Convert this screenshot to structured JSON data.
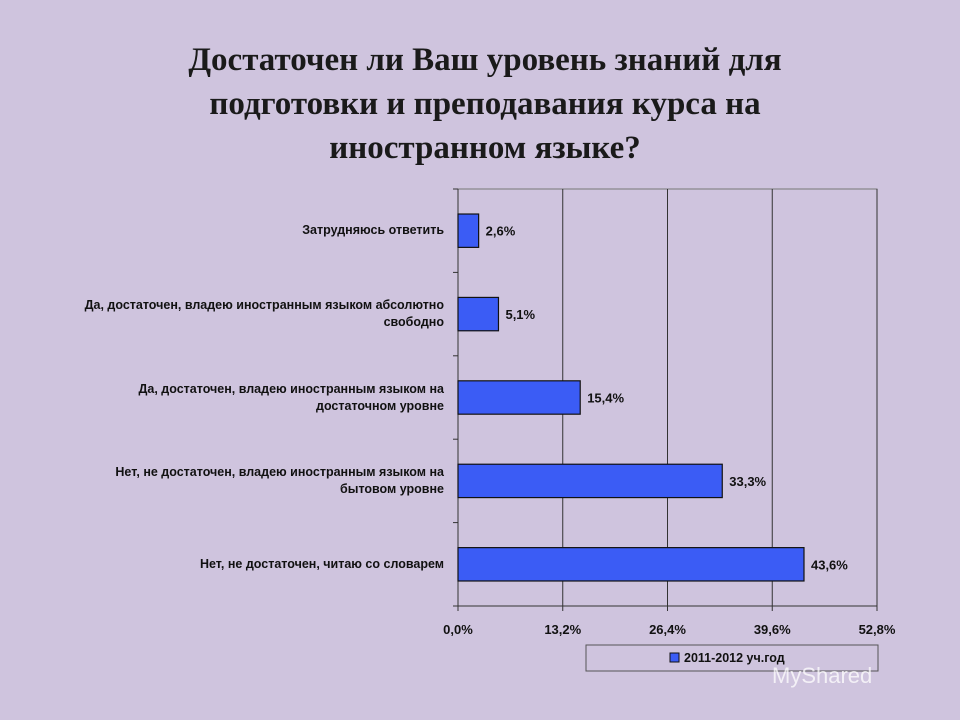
{
  "slide": {
    "title_lines": [
      "Достаточен ли Ваш уровень знаний для",
      "подготовки и преподавания курса на",
      "иностранном языке?"
    ]
  },
  "watermark": {
    "text": "MyShared"
  },
  "chart_data": {
    "type": "bar",
    "orientation": "horizontal",
    "categories": [
      "Затрудняюсь ответить",
      "Да, достаточен, владею иностранным языком абсолютно свободно",
      "Да, достаточен, владею иностранным языком на достаточном уровне",
      "Нет, не достаточен, владею иностранным языком на бытовом уровне",
      "Нет, не достаточен, читаю со словарем"
    ],
    "category_label_lines": [
      [
        "Затрудняюсь ответить"
      ],
      [
        "Да, достаточен, владею иностранным языком абсолютно",
        "свободно"
      ],
      [
        "Да, достаточен, владею иностранным языком на",
        "достаточном уровне"
      ],
      [
        "Нет, не достаточен, владею иностранным языком на",
        "бытовом уровне"
      ],
      [
        "Нет, не достаточен, читаю со словарем"
      ]
    ],
    "series": [
      {
        "name": "2011-2012 уч.год",
        "values": [
          2.6,
          5.1,
          15.4,
          33.3,
          43.6
        ],
        "data_labels": [
          "2,6%",
          "5,1%",
          "15,4%",
          "33,3%",
          "43,6%"
        ],
        "color": "#3b5cf5"
      }
    ],
    "xlim": [
      0,
      52.8
    ],
    "xticks": [
      0,
      13.2,
      26.4,
      39.6,
      52.8
    ],
    "xtick_labels": [
      "0,0%",
      "13,2%",
      "26,4%",
      "39,6%",
      "52,8%"
    ],
    "grid": "vertical",
    "legend": "bottom"
  }
}
